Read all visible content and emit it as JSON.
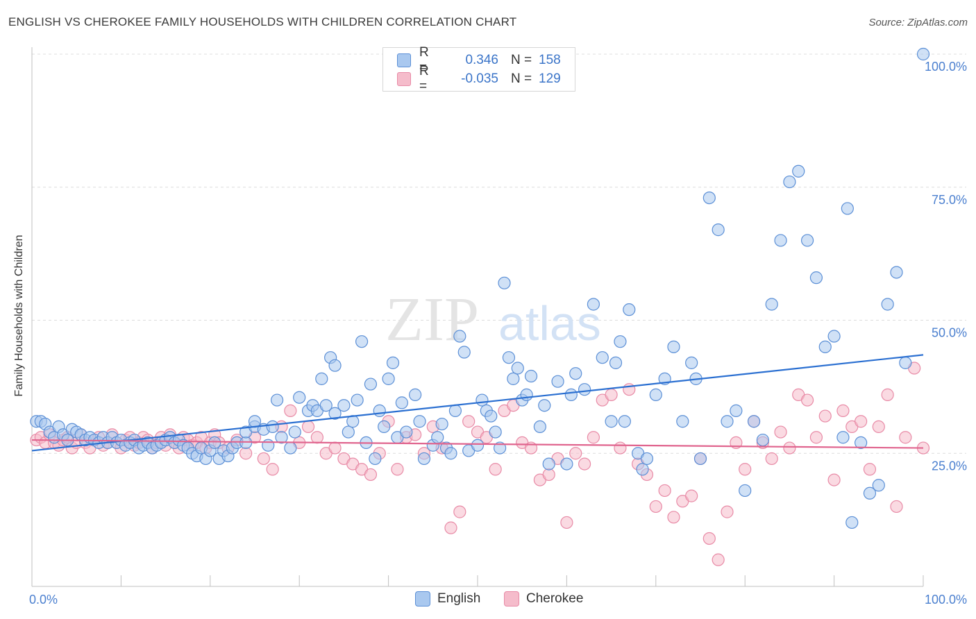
{
  "header": {
    "title": "ENGLISH VS CHEROKEE FAMILY HOUSEHOLDS WITH CHILDREN CORRELATION CHART",
    "source": "Source: ZipAtlas.com"
  },
  "watermark": {
    "zip": "ZIP",
    "atlas": "atlas"
  },
  "stats": {
    "english": {
      "r_label": "R =",
      "r_value": "0.346",
      "n_label": "N =",
      "n_value": "158"
    },
    "cherokee": {
      "r_label": "R =",
      "r_value": "-0.035",
      "n_label": "N =",
      "n_value": "129"
    }
  },
  "legend": {
    "english": "English",
    "cherokee": "Cherokee"
  },
  "colors": {
    "english_fill": "#a9c8ef",
    "english_stroke": "#5b8fd6",
    "english_line": "#2a6fd1",
    "cherokee_fill": "#f5bccb",
    "cherokee_stroke": "#e88aa6",
    "cherokee_line": "#e0648e",
    "grid": "#dcdcdc",
    "tick_text": "#4a7fcf"
  },
  "chart_data": {
    "type": "scatter",
    "title": "ENGLISH VS CHEROKEE FAMILY HOUSEHOLDS WITH CHILDREN CORRELATION CHART",
    "xlabel": "",
    "ylabel": "Family Households with Children",
    "xlim": [
      0,
      100
    ],
    "ylim": [
      0,
      100
    ],
    "x_tick_labels": [
      "0.0%",
      "100.0%"
    ],
    "y_ticks": [
      25,
      50,
      75,
      100
    ],
    "y_tick_labels": [
      "25.0%",
      "50.0%",
      "75.0%",
      "100.0%"
    ],
    "grid": true,
    "legend_position": "bottom",
    "series": [
      {
        "name": "English",
        "trend": [
          [
            0,
            25.5
          ],
          [
            100,
            43.5
          ]
        ],
        "points": [
          [
            0.5,
            31
          ],
          [
            1,
            31
          ],
          [
            1.5,
            30.5
          ],
          [
            2,
            29
          ],
          [
            2.5,
            28
          ],
          [
            3,
            30
          ],
          [
            3.5,
            28.5
          ],
          [
            4,
            27.5
          ],
          [
            4.5,
            29.5
          ],
          [
            5,
            29
          ],
          [
            5.5,
            28.5
          ],
          [
            6,
            27.5
          ],
          [
            6.5,
            28
          ],
          [
            7,
            27.5
          ],
          [
            7.5,
            27
          ],
          [
            8,
            28
          ],
          [
            8.5,
            27
          ],
          [
            9,
            28
          ],
          [
            9.5,
            27
          ],
          [
            10,
            27.5
          ],
          [
            10.5,
            26.5
          ],
          [
            11,
            27
          ],
          [
            11.5,
            27.5
          ],
          [
            12,
            26
          ],
          [
            12.5,
            26.5
          ],
          [
            13,
            27
          ],
          [
            13.5,
            26
          ],
          [
            14,
            26.5
          ],
          [
            14.5,
            27
          ],
          [
            15,
            27.5
          ],
          [
            15.5,
            28
          ],
          [
            16,
            27
          ],
          [
            16.5,
            27.5
          ],
          [
            17,
            26.5
          ],
          [
            17.5,
            26
          ],
          [
            18,
            25
          ],
          [
            18.5,
            24.5
          ],
          [
            19,
            26
          ],
          [
            19.5,
            24
          ],
          [
            20,
            25.5
          ],
          [
            20.5,
            27
          ],
          [
            21,
            24
          ],
          [
            21.5,
            25.5
          ],
          [
            22,
            24.5
          ],
          [
            22.5,
            26
          ],
          [
            23,
            27
          ],
          [
            24,
            27
          ],
          [
            24,
            29
          ],
          [
            25,
            30
          ],
          [
            25,
            31
          ],
          [
            26,
            29.5
          ],
          [
            26.5,
            26.5
          ],
          [
            27,
            30
          ],
          [
            27.5,
            35
          ],
          [
            28,
            28
          ],
          [
            29,
            26
          ],
          [
            29.5,
            29
          ],
          [
            30,
            35.5
          ],
          [
            31,
            33
          ],
          [
            31.5,
            34
          ],
          [
            32,
            33
          ],
          [
            32.5,
            39
          ],
          [
            33,
            34
          ],
          [
            33.5,
            43
          ],
          [
            34,
            41.5
          ],
          [
            34,
            32.5
          ],
          [
            35,
            34
          ],
          [
            35.5,
            29
          ],
          [
            36,
            31
          ],
          [
            36.5,
            35
          ],
          [
            37,
            46
          ],
          [
            37.5,
            27
          ],
          [
            38,
            38
          ],
          [
            38.5,
            24
          ],
          [
            39,
            33
          ],
          [
            39.5,
            30
          ],
          [
            40,
            39
          ],
          [
            40.5,
            42
          ],
          [
            41,
            28
          ],
          [
            41.5,
            34.5
          ],
          [
            42,
            29
          ],
          [
            43,
            36
          ],
          [
            43.5,
            31
          ],
          [
            44,
            24
          ],
          [
            45,
            26.5
          ],
          [
            45.5,
            28
          ],
          [
            46,
            30.5
          ],
          [
            46.5,
            26
          ],
          [
            47,
            25
          ],
          [
            47.5,
            33
          ],
          [
            48,
            47
          ],
          [
            48.5,
            44
          ],
          [
            49,
            25.5
          ],
          [
            50,
            26.5
          ],
          [
            50.5,
            35
          ],
          [
            51,
            33
          ],
          [
            51.5,
            32
          ],
          [
            52,
            29
          ],
          [
            52.5,
            26
          ],
          [
            53,
            57
          ],
          [
            53.5,
            43
          ],
          [
            54,
            39
          ],
          [
            54.5,
            41
          ],
          [
            55,
            35
          ],
          [
            55.5,
            36
          ],
          [
            56,
            39.5
          ],
          [
            57,
            30
          ],
          [
            57.5,
            34
          ],
          [
            58,
            23
          ],
          [
            59,
            38.5
          ],
          [
            60,
            23
          ],
          [
            60.5,
            36
          ],
          [
            61,
            40
          ],
          [
            62,
            37
          ],
          [
            63,
            53
          ],
          [
            64,
            43
          ],
          [
            65,
            31
          ],
          [
            65.5,
            42
          ],
          [
            66,
            46
          ],
          [
            66.5,
            31
          ],
          [
            67,
            52
          ],
          [
            68,
            25
          ],
          [
            68.5,
            22
          ],
          [
            69,
            24
          ],
          [
            70,
            36
          ],
          [
            71,
            39
          ],
          [
            72,
            45
          ],
          [
            73,
            31
          ],
          [
            74,
            42
          ],
          [
            74.5,
            39
          ],
          [
            75,
            24
          ],
          [
            76,
            73
          ],
          [
            77,
            67
          ],
          [
            78,
            31
          ],
          [
            79,
            33
          ],
          [
            80,
            18
          ],
          [
            81,
            31
          ],
          [
            82,
            27.5
          ],
          [
            83,
            53
          ],
          [
            84,
            65
          ],
          [
            85,
            76
          ],
          [
            86,
            78
          ],
          [
            87,
            65
          ],
          [
            88,
            58
          ],
          [
            89,
            45
          ],
          [
            90,
            47
          ],
          [
            91,
            28
          ],
          [
            91.5,
            71
          ],
          [
            92,
            12
          ],
          [
            93,
            27
          ],
          [
            94,
            17.5
          ],
          [
            95,
            19
          ],
          [
            96,
            53
          ],
          [
            97,
            59
          ],
          [
            98,
            42
          ],
          [
            100,
            100
          ]
        ]
      },
      {
        "name": "Cherokee",
        "trend": [
          [
            0,
            27.5
          ],
          [
            100,
            26
          ]
        ],
        "points": [
          [
            0.5,
            27.5
          ],
          [
            1,
            28
          ],
          [
            1.5,
            27
          ],
          [
            2,
            28.5
          ],
          [
            2.5,
            27
          ],
          [
            3,
            26.5
          ],
          [
            3.5,
            27.5
          ],
          [
            4,
            28
          ],
          [
            4.5,
            26
          ],
          [
            5,
            27
          ],
          [
            5.5,
            28.5
          ],
          [
            6,
            27
          ],
          [
            6.5,
            26
          ],
          [
            7,
            27.5
          ],
          [
            7.5,
            28
          ],
          [
            8,
            26.5
          ],
          [
            8.5,
            27
          ],
          [
            9,
            28.5
          ],
          [
            9.5,
            27
          ],
          [
            10,
            26
          ],
          [
            10.5,
            27.5
          ],
          [
            11,
            28
          ],
          [
            11.5,
            26.5
          ],
          [
            12,
            27
          ],
          [
            12.5,
            28
          ],
          [
            13,
            27.5
          ],
          [
            13.5,
            26
          ],
          [
            14,
            27
          ],
          [
            14.5,
            28
          ],
          [
            15,
            26.5
          ],
          [
            15.5,
            28.5
          ],
          [
            16,
            27
          ],
          [
            16.5,
            26
          ],
          [
            17,
            28
          ],
          [
            17.5,
            27.5
          ],
          [
            18,
            26.5
          ],
          [
            18.5,
            27
          ],
          [
            19,
            28
          ],
          [
            19.5,
            26
          ],
          [
            20,
            27
          ],
          [
            20.5,
            28.5
          ],
          [
            21,
            27
          ],
          [
            22,
            26
          ],
          [
            23,
            27.5
          ],
          [
            24,
            25
          ],
          [
            25,
            28
          ],
          [
            26,
            24
          ],
          [
            27,
            22
          ],
          [
            28,
            30
          ],
          [
            29,
            33
          ],
          [
            30,
            27
          ],
          [
            31,
            30
          ],
          [
            32,
            28
          ],
          [
            33,
            25
          ],
          [
            34,
            26
          ],
          [
            35,
            24
          ],
          [
            36,
            23
          ],
          [
            37,
            22
          ],
          [
            38,
            21
          ],
          [
            39,
            25
          ],
          [
            40,
            31
          ],
          [
            41,
            22
          ],
          [
            42,
            28
          ],
          [
            43,
            28.5
          ],
          [
            44,
            25
          ],
          [
            45,
            30
          ],
          [
            46,
            26
          ],
          [
            47,
            11
          ],
          [
            48,
            14
          ],
          [
            49,
            31
          ],
          [
            50,
            29
          ],
          [
            51,
            28
          ],
          [
            52,
            22
          ],
          [
            53,
            33
          ],
          [
            54,
            34
          ],
          [
            55,
            27
          ],
          [
            56,
            26
          ],
          [
            57,
            20
          ],
          [
            58,
            21
          ],
          [
            59,
            24
          ],
          [
            60,
            12
          ],
          [
            61,
            25
          ],
          [
            62,
            23
          ],
          [
            63,
            28
          ],
          [
            64,
            35
          ],
          [
            65,
            36
          ],
          [
            66,
            26
          ],
          [
            67,
            37
          ],
          [
            68,
            23
          ],
          [
            69,
            21
          ],
          [
            70,
            15
          ],
          [
            71,
            18
          ],
          [
            72,
            13
          ],
          [
            73,
            16
          ],
          [
            74,
            17
          ],
          [
            75,
            24
          ],
          [
            76,
            9
          ],
          [
            77,
            5
          ],
          [
            78,
            14
          ],
          [
            79,
            27
          ],
          [
            80,
            22
          ],
          [
            81,
            31
          ],
          [
            82,
            27
          ],
          [
            83,
            24
          ],
          [
            84,
            29
          ],
          [
            85,
            26
          ],
          [
            86,
            36
          ],
          [
            87,
            35
          ],
          [
            88,
            28
          ],
          [
            89,
            32
          ],
          [
            90,
            20
          ],
          [
            91,
            33
          ],
          [
            92,
            30
          ],
          [
            93,
            31
          ],
          [
            94,
            22
          ],
          [
            95,
            30
          ],
          [
            96,
            36
          ],
          [
            97,
            15
          ],
          [
            98,
            28
          ],
          [
            99,
            41
          ],
          [
            100,
            26
          ]
        ]
      }
    ]
  }
}
